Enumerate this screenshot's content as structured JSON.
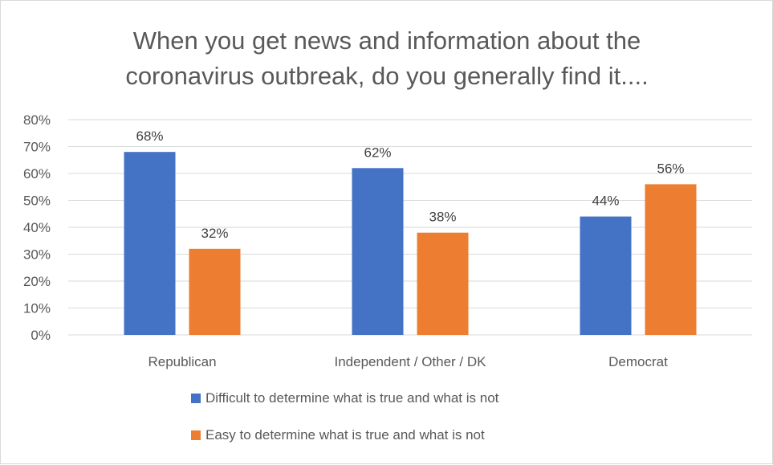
{
  "chart_data": {
    "type": "bar",
    "title_lines": [
      "When you get news and information about the",
      "coronavirus outbreak, do you generally find it...."
    ],
    "categories": [
      "Republican",
      "Independent / Other / DK",
      "Democrat"
    ],
    "series": [
      {
        "name": "Difficult to determine what is true and what is not",
        "values": [
          68,
          62,
          44
        ],
        "labels": [
          "68%",
          "62%",
          "44%"
        ],
        "color": "#4472c4"
      },
      {
        "name": "Easy to determine what is true and what is not",
        "values": [
          32,
          38,
          56
        ],
        "labels": [
          "32%",
          "38%",
          "56%"
        ],
        "color": "#ed7d31"
      }
    ],
    "y_ticks": [
      0,
      10,
      20,
      30,
      40,
      50,
      60,
      70,
      80
    ],
    "y_tick_labels": [
      "0%",
      "10%",
      "20%",
      "30%",
      "40%",
      "50%",
      "60%",
      "70%",
      "80%"
    ],
    "ylim": [
      0,
      80
    ],
    "grid": true,
    "gridline_color": "#d9d9d9",
    "legend_position": "bottom"
  }
}
